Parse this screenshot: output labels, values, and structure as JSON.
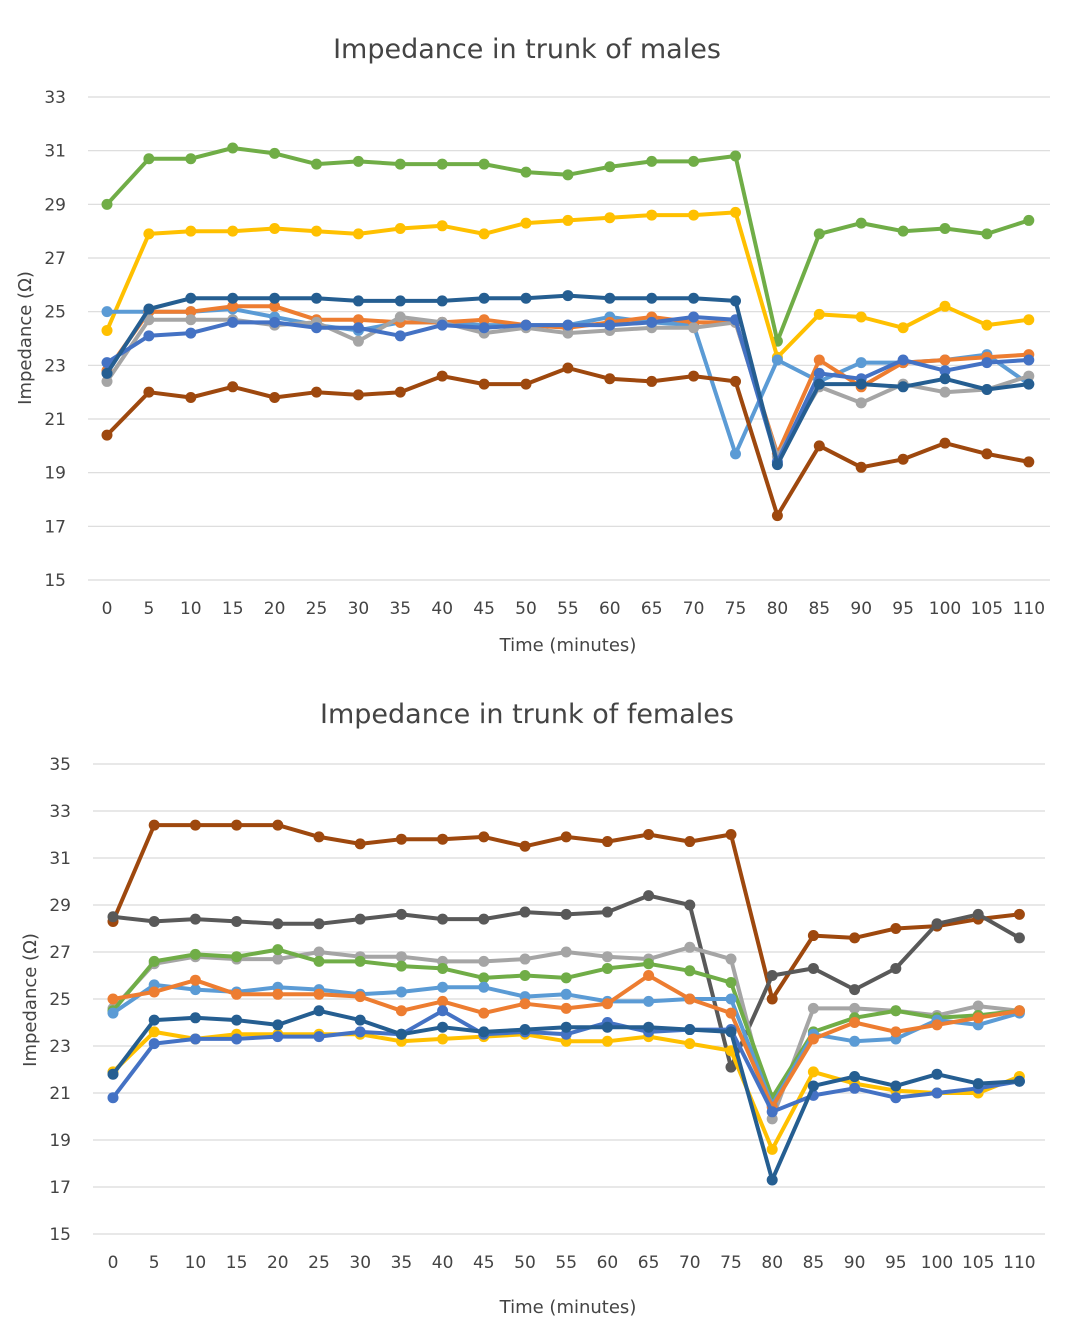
{
  "chart_data": [
    {
      "type": "line",
      "title": "Impedance in trunk of males",
      "xlabel": "Time (minutes)",
      "ylabel": "Impedance (Ω)",
      "x": [
        0,
        5,
        10,
        15,
        20,
        25,
        30,
        35,
        40,
        45,
        50,
        55,
        60,
        65,
        70,
        75,
        80,
        85,
        90,
        95,
        100,
        105,
        110
      ],
      "ylim": [
        15,
        33
      ],
      "yticks": [
        15,
        17,
        19,
        21,
        23,
        25,
        27,
        29,
        31,
        33
      ],
      "grid": true,
      "legend": "none",
      "series": [
        {
          "color": "#70ad47",
          "values": [
            29.0,
            30.7,
            30.7,
            31.1,
            30.9,
            30.5,
            30.6,
            30.5,
            30.5,
            30.5,
            30.2,
            30.1,
            30.4,
            30.6,
            30.6,
            30.8,
            23.9,
            27.9,
            28.3,
            28.0,
            28.1,
            27.9,
            28.4
          ]
        },
        {
          "color": "#ffc000",
          "values": [
            24.3,
            27.9,
            28.0,
            28.0,
            28.1,
            28.0,
            27.9,
            28.1,
            28.2,
            27.9,
            28.3,
            28.4,
            28.5,
            28.6,
            28.6,
            28.7,
            23.3,
            24.9,
            24.8,
            24.4,
            25.2,
            24.5,
            24.7
          ]
        },
        {
          "color": "#5b9bd5",
          "values": [
            25.0,
            25.0,
            25.0,
            25.1,
            24.8,
            24.5,
            24.3,
            24.6,
            24.6,
            24.5,
            24.5,
            24.5,
            24.8,
            24.6,
            24.5,
            19.7,
            23.2,
            22.4,
            23.1,
            23.1,
            23.2,
            23.4,
            22.3
          ]
        },
        {
          "color": "#ed7d31",
          "values": [
            22.8,
            25.0,
            25.0,
            25.2,
            25.2,
            24.7,
            24.7,
            24.6,
            24.6,
            24.7,
            24.5,
            24.4,
            24.6,
            24.8,
            24.6,
            24.6,
            19.7,
            23.2,
            22.2,
            23.1,
            23.2,
            23.3,
            23.4
          ]
        },
        {
          "color": "#a5a5a5",
          "values": [
            22.4,
            24.7,
            24.7,
            24.7,
            24.5,
            24.6,
            23.9,
            24.8,
            24.6,
            24.2,
            24.4,
            24.2,
            24.3,
            24.4,
            24.4,
            24.6,
            19.6,
            22.2,
            21.6,
            22.3,
            22.0,
            22.1,
            22.6
          ]
        },
        {
          "color": "#4472c4",
          "values": [
            23.1,
            24.1,
            24.2,
            24.6,
            24.6,
            24.4,
            24.4,
            24.1,
            24.5,
            24.4,
            24.5,
            24.5,
            24.5,
            24.6,
            24.8,
            24.7,
            19.4,
            22.7,
            22.5,
            23.2,
            22.8,
            23.1,
            23.2
          ]
        },
        {
          "color": "#255e91",
          "values": [
            22.7,
            25.1,
            25.5,
            25.5,
            25.5,
            25.5,
            25.4,
            25.4,
            25.4,
            25.5,
            25.5,
            25.6,
            25.5,
            25.5,
            25.5,
            25.4,
            19.3,
            22.3,
            22.3,
            22.2,
            22.5,
            22.1,
            22.3
          ]
        },
        {
          "color": "#9e480e",
          "values": [
            20.4,
            22.0,
            21.8,
            22.2,
            21.8,
            22.0,
            21.9,
            22.0,
            22.6,
            22.3,
            22.3,
            22.9,
            22.5,
            22.4,
            22.6,
            22.4,
            17.4,
            20.0,
            19.2,
            19.5,
            20.1,
            19.7,
            19.4
          ]
        }
      ]
    },
    {
      "type": "line",
      "title": "Impedance in trunk of females",
      "xlabel": "Time (minutes)",
      "ylabel": "Impedance (Ω)",
      "x": [
        0,
        5,
        10,
        15,
        20,
        25,
        30,
        35,
        40,
        45,
        50,
        55,
        60,
        65,
        70,
        75,
        80,
        85,
        90,
        95,
        100,
        105,
        110
      ],
      "ylim": [
        15,
        35
      ],
      "yticks": [
        15,
        17,
        19,
        21,
        23,
        25,
        27,
        29,
        31,
        33,
        35
      ],
      "grid": true,
      "legend": "none",
      "series": [
        {
          "color": "#9e480e",
          "values": [
            28.3,
            32.4,
            32.4,
            32.4,
            32.4,
            31.9,
            31.6,
            31.8,
            31.8,
            31.9,
            31.5,
            31.9,
            31.7,
            32.0,
            31.7,
            32.0,
            25.0,
            27.7,
            27.6,
            28.0,
            28.1,
            28.4,
            28.6
          ]
        },
        {
          "color": "#595959",
          "values": [
            28.5,
            28.3,
            28.4,
            28.3,
            28.2,
            28.2,
            28.4,
            28.6,
            28.4,
            28.4,
            28.7,
            28.6,
            28.7,
            29.4,
            29.0,
            22.1,
            26.0,
            26.3,
            25.4,
            26.3,
            28.2,
            28.6,
            27.6
          ]
        },
        {
          "color": "#a5a5a5",
          "values": [
            24.6,
            26.5,
            26.8,
            26.7,
            26.7,
            27.0,
            26.8,
            26.8,
            26.6,
            26.6,
            26.7,
            27.0,
            26.8,
            26.7,
            27.2,
            26.7,
            19.9,
            24.6,
            24.6,
            24.5,
            24.3,
            24.7,
            24.5
          ]
        },
        {
          "color": "#70ad47",
          "values": [
            24.5,
            26.6,
            26.9,
            26.8,
            27.1,
            26.6,
            26.6,
            26.4,
            26.3,
            25.9,
            26.0,
            25.9,
            26.3,
            26.5,
            26.2,
            25.7,
            20.8,
            23.6,
            24.2,
            24.5,
            24.2,
            24.3,
            24.5
          ]
        },
        {
          "color": "#5b9bd5",
          "values": [
            24.4,
            25.6,
            25.4,
            25.3,
            25.5,
            25.4,
            25.2,
            25.3,
            25.5,
            25.5,
            25.1,
            25.2,
            24.9,
            24.9,
            25.0,
            25.0,
            20.5,
            23.5,
            23.2,
            23.3,
            24.1,
            23.9,
            24.4
          ]
        },
        {
          "color": "#ed7d31",
          "values": [
            25.0,
            25.3,
            25.8,
            25.2,
            25.2,
            25.2,
            25.1,
            24.5,
            24.9,
            24.4,
            24.8,
            24.6,
            24.8,
            26.0,
            25.0,
            24.4,
            20.4,
            23.3,
            24.0,
            23.6,
            23.9,
            24.2,
            24.5
          ]
        },
        {
          "color": "#ffc000",
          "values": [
            21.9,
            23.6,
            23.3,
            23.5,
            23.5,
            23.5,
            23.5,
            23.2,
            23.3,
            23.4,
            23.5,
            23.2,
            23.2,
            23.4,
            23.1,
            22.8,
            18.6,
            21.9,
            21.4,
            21.1,
            21.0,
            21.0,
            21.7
          ]
        },
        {
          "color": "#4472c4",
          "values": [
            20.8,
            23.1,
            23.3,
            23.3,
            23.4,
            23.4,
            23.6,
            23.5,
            24.5,
            23.5,
            23.6,
            23.5,
            24.0,
            23.6,
            23.7,
            23.7,
            20.2,
            20.9,
            21.2,
            20.8,
            21.0,
            21.2,
            21.5
          ]
        },
        {
          "color": "#255e91",
          "values": [
            21.8,
            24.1,
            24.2,
            24.1,
            23.9,
            24.5,
            24.1,
            23.5,
            23.8,
            23.6,
            23.7,
            23.8,
            23.8,
            23.8,
            23.7,
            23.6,
            17.3,
            21.3,
            21.7,
            21.3,
            21.8,
            21.4,
            21.5
          ]
        }
      ]
    }
  ]
}
